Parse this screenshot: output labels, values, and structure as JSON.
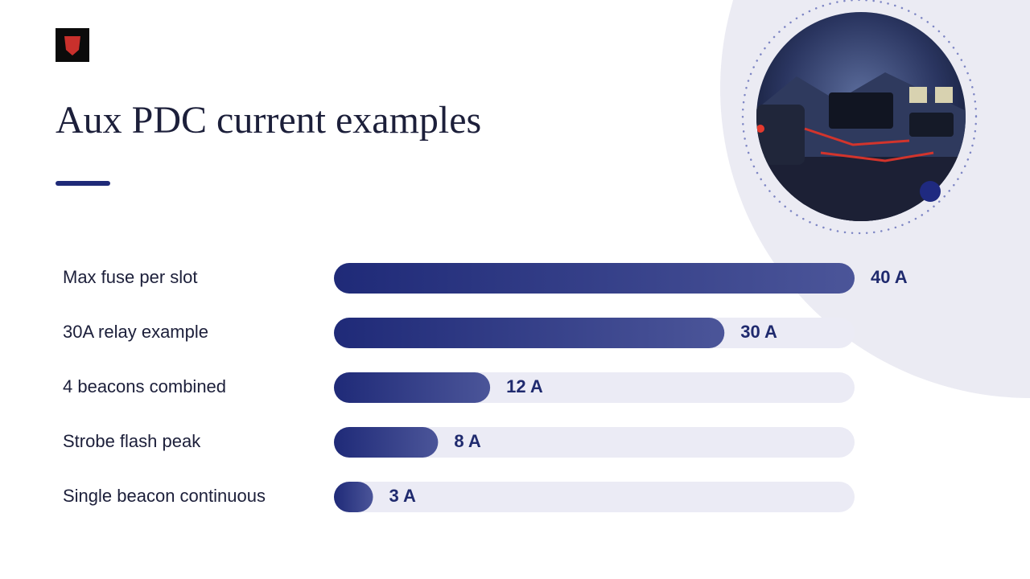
{
  "chart_data": {
    "type": "hbar",
    "title": "Aux PDC current examples",
    "categories": [
      "Max fuse per slot",
      "30A relay example",
      "4 beacons combined",
      "Strobe flash peak",
      "Single beacon continuous"
    ],
    "values": [
      40,
      30,
      12,
      8,
      3
    ],
    "value_labels": [
      "40 A",
      "30 A",
      "12 A",
      "8 A",
      "3 A"
    ],
    "color": "#1f2a78"
  }
}
